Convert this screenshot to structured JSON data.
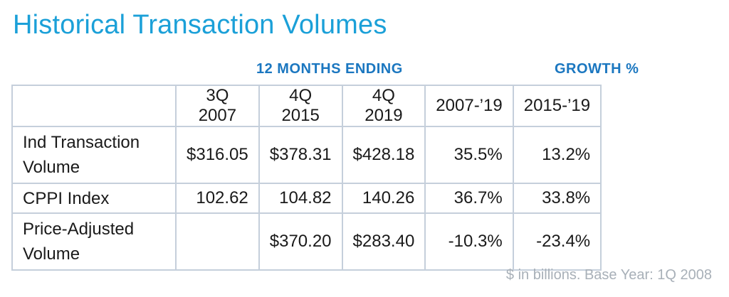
{
  "title": "Historical Transaction Volumes",
  "group_headers": {
    "months": "12 MONTHS ENDING",
    "growth": "GROWTH %"
  },
  "columns": [
    "",
    "3Q 2007",
    "4Q 2015",
    "4Q 2019",
    "2007-’19",
    "2015-’19"
  ],
  "rows": [
    {
      "label": "Ind Transaction Volume",
      "values": [
        "$316.05",
        "$378.31",
        "$428.18",
        "35.5%",
        "13.2%"
      ]
    },
    {
      "label": "CPPI Index",
      "values": [
        "102.62",
        "104.82",
        "140.26",
        "36.7%",
        "33.8%"
      ]
    },
    {
      "label": "Price-Adjusted Volume",
      "values": [
        "",
        "$370.20",
        "$283.40",
        "-10.3%",
        "-23.4%"
      ]
    }
  ],
  "footnote": "$ in billions. Base Year: 1Q 2008",
  "colors": {
    "title": "#1ba0d8",
    "group_header": "#1b77c0",
    "border": "#c5cfdb",
    "footnote": "#a8b0b8"
  }
}
